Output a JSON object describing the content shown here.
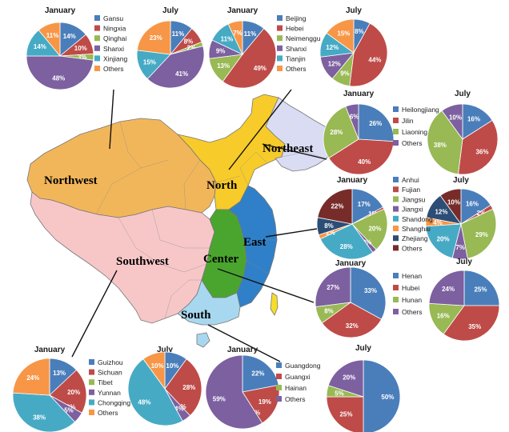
{
  "region_labels": {
    "northwest": "Northwest",
    "north": "North",
    "northeast": "Northeast",
    "east": "East",
    "center": "Center",
    "southwest": "Southwest",
    "south": "South"
  },
  "colors": {
    "blue": "#4a7ebb",
    "red": "#be4b48",
    "green": "#98b954",
    "purple": "#7d60a0",
    "cyan": "#46aac5",
    "orange": "#f79646",
    "navy": "#2c4d75",
    "darkred": "#772c2a",
    "northwest_region": "#f2b65a",
    "north_region": "#f7cb2a",
    "northeast_region": "#dadcf3",
    "east_region": "#2f80c8",
    "center_region": "#4aa52e",
    "southwest_region": "#f7c7c8",
    "south_region": "#a8d8ef"
  },
  "chart_data": [
    {
      "type": "pie",
      "group": "Northwest",
      "title": "January",
      "labels": [
        "Gansu",
        "Ningxia",
        "Qinghai",
        "Shanxi",
        "Xinjiang",
        "Others"
      ],
      "values": [
        14,
        10,
        3,
        48,
        14,
        11
      ]
    },
    {
      "type": "pie",
      "group": "Northwest",
      "title": "July",
      "labels": [
        "Gansu",
        "Ningxia",
        "Qinghai",
        "Shanxi",
        "Xinjiang",
        "Others"
      ],
      "values": [
        11,
        8,
        2,
        41,
        15,
        23
      ]
    },
    {
      "type": "pie",
      "group": "North",
      "title": "January",
      "labels": [
        "Beijing",
        "Hebei",
        "Neimenggu",
        "Shanxi",
        "Tianjin",
        "Others"
      ],
      "values": [
        11,
        49,
        13,
        9,
        11,
        7
      ]
    },
    {
      "type": "pie",
      "group": "North",
      "title": "July",
      "labels": [
        "Beijing",
        "Hebei",
        "Neimenggu",
        "Shanxi",
        "Tianjin",
        "Others"
      ],
      "values": [
        8,
        44,
        9,
        12,
        12,
        15
      ]
    },
    {
      "type": "pie",
      "group": "Northeast",
      "title": "January",
      "labels": [
        "Heilongjiang",
        "Jilin",
        "Liaoning",
        "Others"
      ],
      "values": [
        26,
        40,
        28,
        6
      ]
    },
    {
      "type": "pie",
      "group": "Northeast",
      "title": "July",
      "labels": [
        "Heilongjiang",
        "Jilin",
        "Liaoning",
        "Others"
      ],
      "values": [
        16,
        36,
        38,
        10
      ]
    },
    {
      "type": "pie",
      "group": "East",
      "title": "January",
      "labels": [
        "Anhui",
        "Fujian",
        "Jiangsu",
        "Jiangxi",
        "Shandong",
        "Shanghai",
        "Zhejiang",
        "Others"
      ],
      "values": [
        17,
        1,
        20,
        2,
        28,
        2,
        8,
        22
      ]
    },
    {
      "type": "pie",
      "group": "East",
      "title": "July",
      "labels": [
        "Anhui",
        "Fujian",
        "Jiangsu",
        "Jiangxi",
        "Shandong",
        "Shanghai",
        "Zhejiang",
        "Others"
      ],
      "values": [
        16,
        2,
        29,
        7,
        20,
        4,
        12,
        10
      ]
    },
    {
      "type": "pie",
      "group": "Center",
      "title": "January",
      "labels": [
        "Henan",
        "Hubei",
        "Hunan",
        "Others"
      ],
      "values": [
        33,
        32,
        8,
        27
      ]
    },
    {
      "type": "pie",
      "group": "Center",
      "title": "July",
      "labels": [
        "Henan",
        "Hubei",
        "Hunan",
        "Others"
      ],
      "values": [
        25,
        35,
        16,
        24
      ]
    },
    {
      "type": "pie",
      "group": "Southwest",
      "title": "January",
      "labels": [
        "Guizhou",
        "Sichuan",
        "Tibet",
        "Yunnan",
        "Chongqing",
        "Others"
      ],
      "values": [
        13,
        20,
        0,
        5,
        38,
        24
      ]
    },
    {
      "type": "pie",
      "group": "Southwest",
      "title": "July",
      "labels": [
        "Guizhou",
        "Sichuan",
        "Tibet",
        "Yunnan",
        "Chongqing",
        "Others"
      ],
      "values": [
        10,
        28,
        0,
        4,
        48,
        10
      ]
    },
    {
      "type": "pie",
      "group": "South",
      "title": "January",
      "labels": [
        "Guangdong",
        "Guangxi",
        "Hainan",
        "Others"
      ],
      "values": [
        22,
        19,
        0,
        59
      ]
    },
    {
      "type": "pie",
      "group": "South",
      "title": "July",
      "labels": [
        "Guangdong",
        "Guangxi",
        "Hainan",
        "Others"
      ],
      "values": [
        50,
        25,
        5,
        20
      ]
    }
  ]
}
